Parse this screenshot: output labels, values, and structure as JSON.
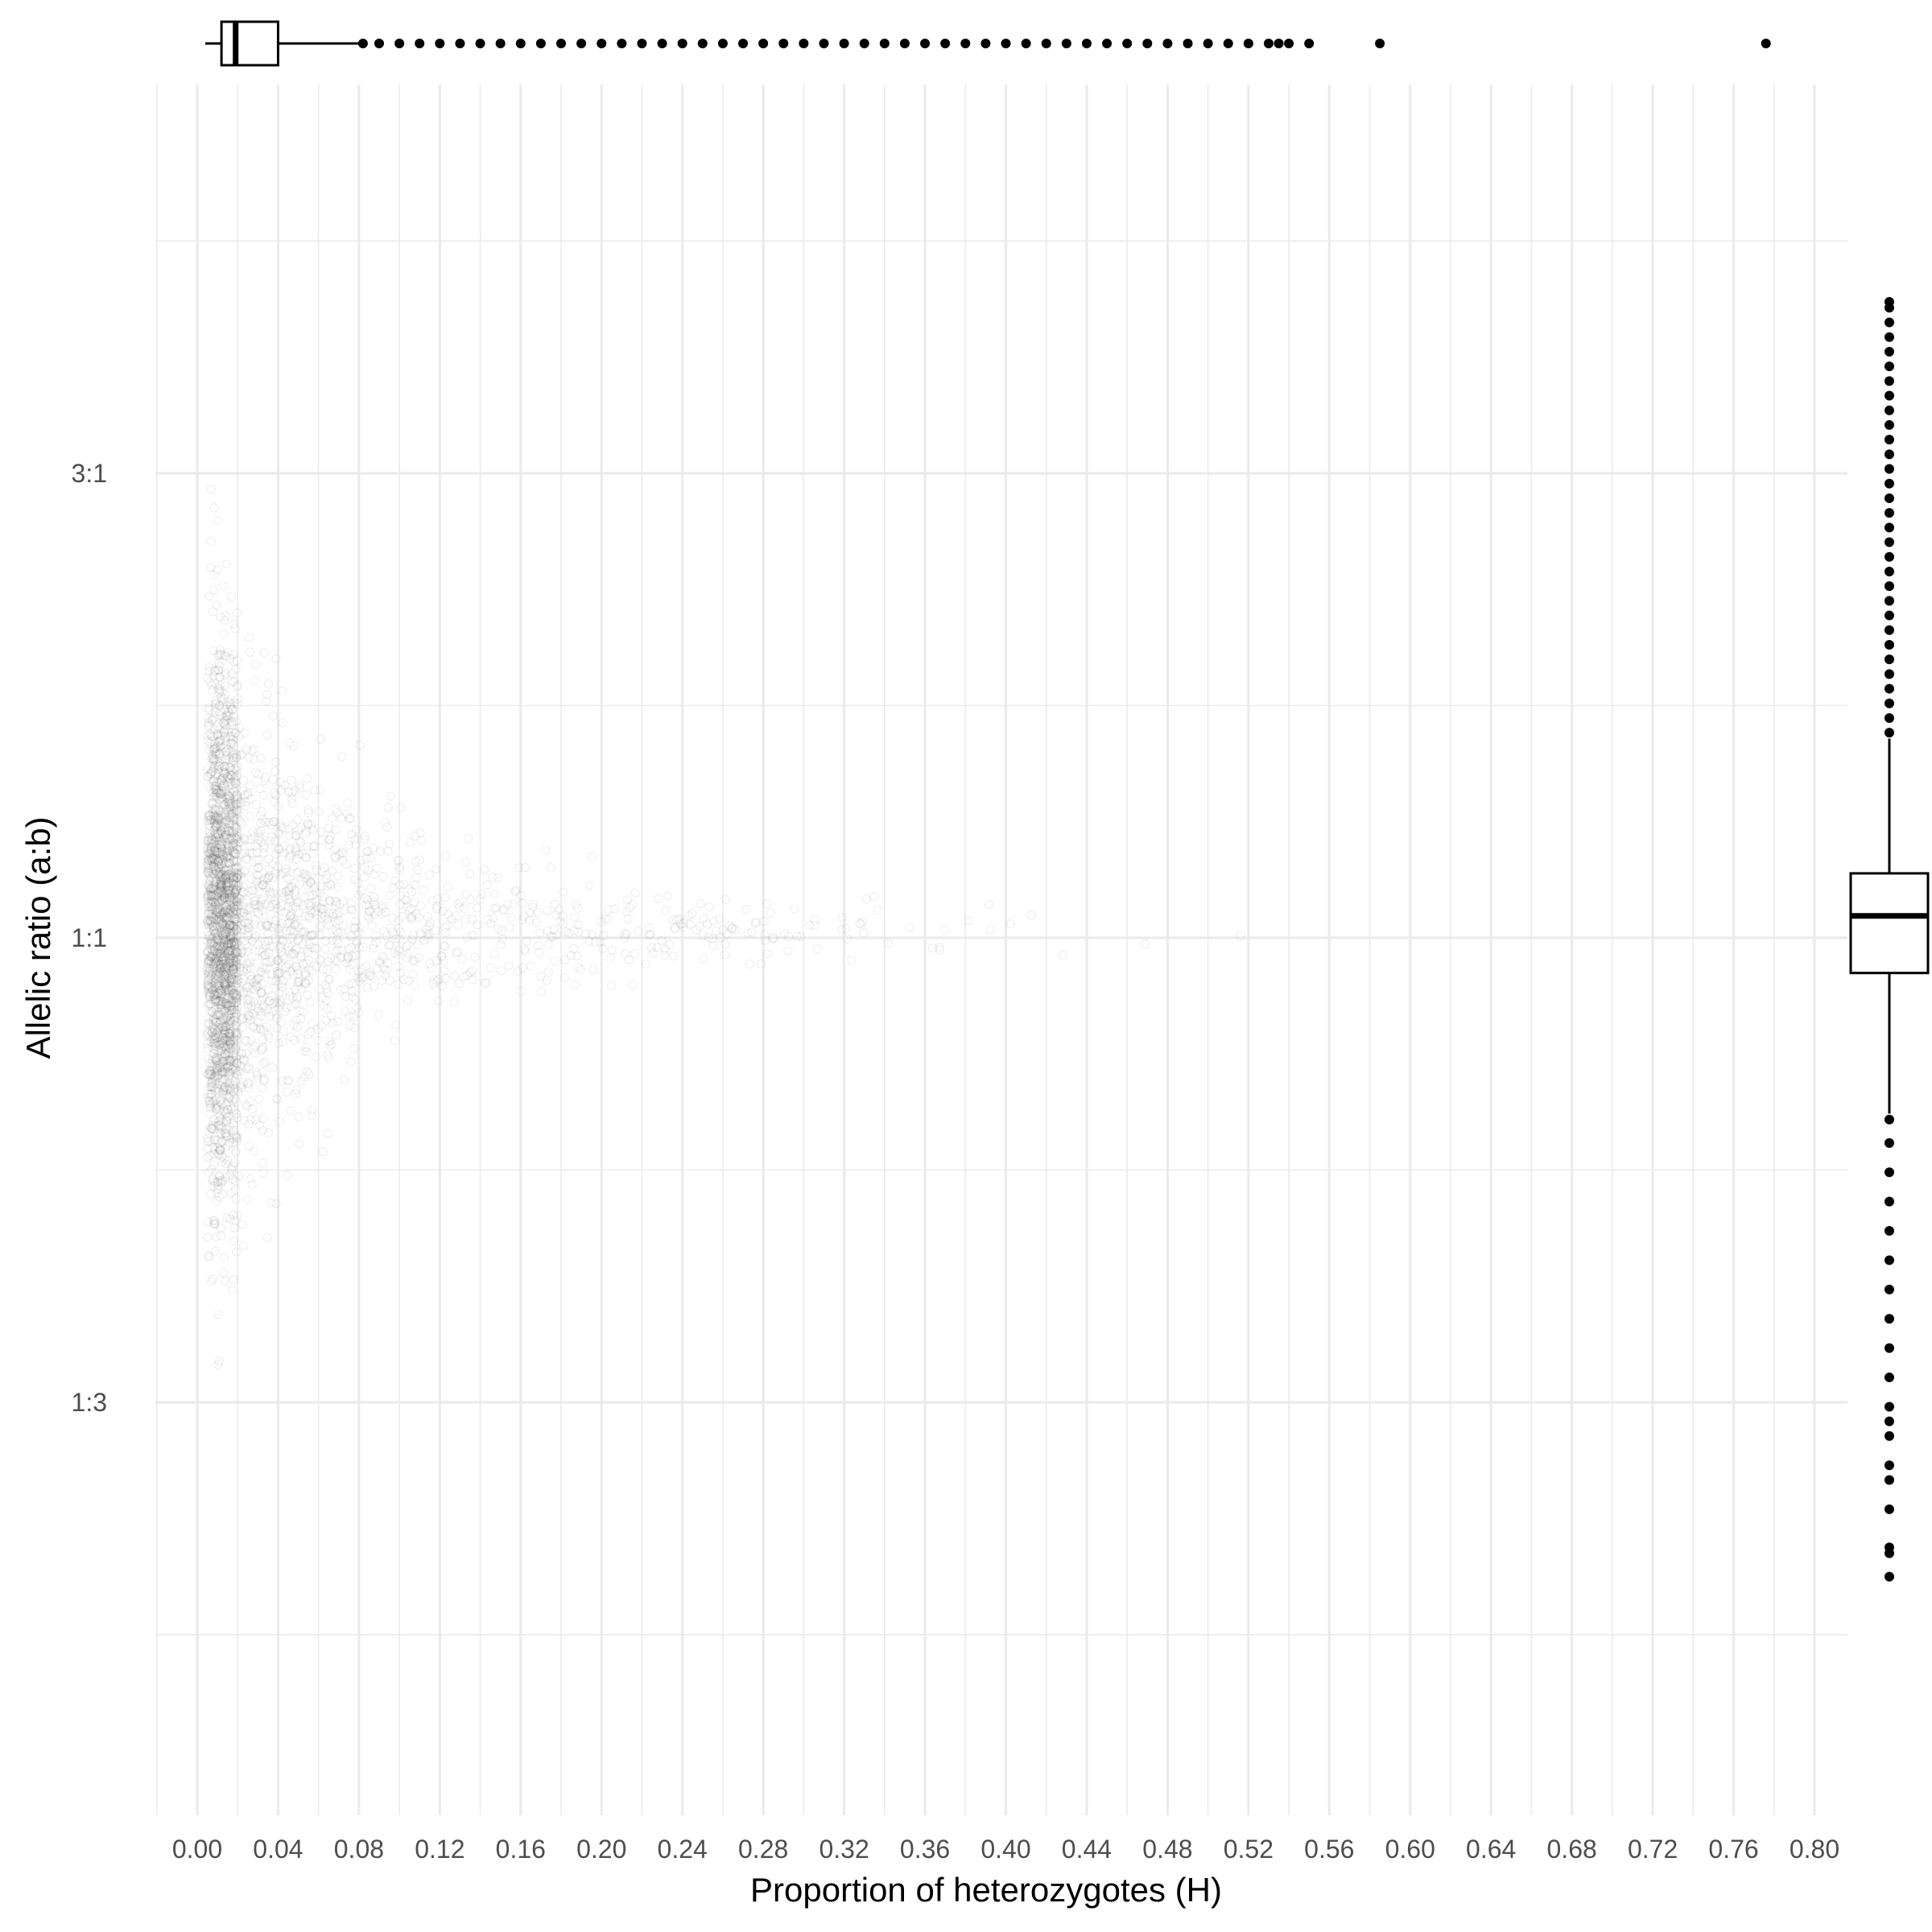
{
  "chart_data": {
    "type": "scatter",
    "title": "",
    "xlabel": "Proportion of heterozygotes (H)",
    "ylabel": "Allelic ratio (a:b)",
    "xlim": [
      -0.02,
      0.82
    ],
    "ylim": [
      -2.3,
      2.3
    ],
    "x_ticks": [
      0.0,
      0.04,
      0.08,
      0.12,
      0.16,
      0.2,
      0.24,
      0.28,
      0.32,
      0.36,
      0.4,
      0.44,
      0.48,
      0.52,
      0.56,
      0.6,
      0.64,
      0.68,
      0.72,
      0.76,
      0.8
    ],
    "x_tick_labels": [
      "0.00",
      "0.04",
      "0.08",
      "0.12",
      "0.16",
      "0.20",
      "0.24",
      "0.28",
      "0.32",
      "0.36",
      "0.40",
      "0.44",
      "0.48",
      "0.52",
      "0.56",
      "0.60",
      "0.64",
      "0.68",
      "0.72",
      "0.76",
      "0.80"
    ],
    "y_scale": "log2 of allelic ratio a:b",
    "y_ticks": [
      1.585,
      0,
      -1.585
    ],
    "y_tick_labels": [
      "3:1",
      "1:1",
      "1:3"
    ],
    "grid": true,
    "point_color": "#000000",
    "point_alpha": 0.03,
    "density_description_points": [
      {
        "x": 0.01,
        "y": 0.0,
        "spread": 0.45
      },
      {
        "x": 0.04,
        "y": 0.02,
        "spread": 0.25
      },
      {
        "x": 0.1,
        "y": 0.02,
        "spread": 0.15
      },
      {
        "x": 0.2,
        "y": 0.02,
        "spread": 0.1
      },
      {
        "x": 0.35,
        "y": 0.02,
        "spread": 0.06
      },
      {
        "x": 0.5,
        "y": 0.02,
        "spread": 0.05
      }
    ],
    "marginal_x_boxplot": {
      "q1": 0.012,
      "median": 0.019,
      "q3": 0.04,
      "whisker_low": 0.004,
      "whisker_high": 0.08,
      "outliers": [
        0.082,
        0.09,
        0.1,
        0.11,
        0.12,
        0.13,
        0.14,
        0.15,
        0.16,
        0.17,
        0.18,
        0.19,
        0.2,
        0.21,
        0.22,
        0.23,
        0.24,
        0.25,
        0.26,
        0.27,
        0.28,
        0.29,
        0.3,
        0.31,
        0.32,
        0.33,
        0.34,
        0.35,
        0.36,
        0.37,
        0.38,
        0.39,
        0.4,
        0.41,
        0.42,
        0.43,
        0.44,
        0.45,
        0.46,
        0.47,
        0.48,
        0.49,
        0.5,
        0.51,
        0.52,
        0.53,
        0.535,
        0.54,
        0.55,
        0.585,
        0.776
      ]
    },
    "marginal_y_boxplot": {
      "q1": -0.12,
      "median": 0.075,
      "q3": 0.22,
      "whisker_low": -0.6,
      "whisker_high": 0.68,
      "outliers": [
        0.7,
        0.75,
        0.8,
        0.85,
        0.9,
        0.95,
        1.0,
        1.05,
        1.1,
        1.15,
        1.2,
        1.25,
        1.3,
        1.35,
        1.4,
        1.45,
        1.5,
        1.55,
        1.6,
        1.65,
        1.7,
        1.75,
        1.8,
        1.85,
        1.9,
        1.95,
        2.0,
        2.05,
        2.1,
        2.15,
        2.17,
        -0.62,
        -0.7,
        -0.8,
        -0.9,
        -1.0,
        -1.1,
        -1.2,
        -1.3,
        -1.4,
        -1.5,
        -1.6,
        -1.65,
        -1.7,
        -1.8,
        -1.85,
        -1.95,
        -2.08,
        -2.1,
        -2.18
      ]
    }
  }
}
